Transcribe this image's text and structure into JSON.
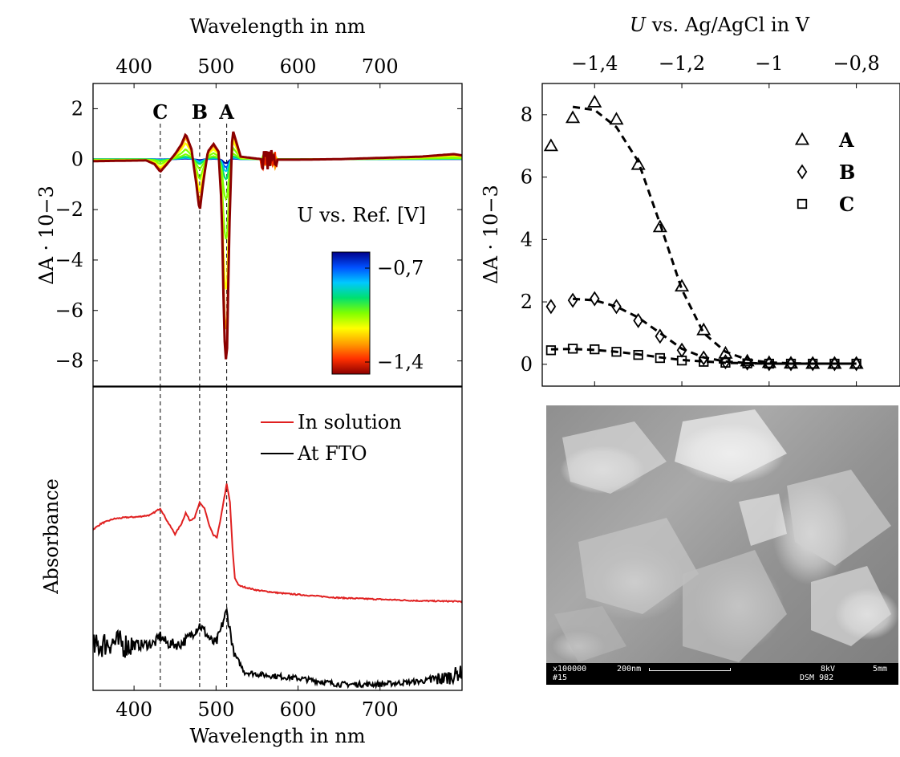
{
  "chart_data": [
    {
      "id": "difference-spectra",
      "type": "line",
      "top_axis_label": "Wavelength in nm",
      "x_ticks": [
        400,
        500,
        600,
        700
      ],
      "xlim": [
        350,
        800
      ],
      "ylabel": "ΔA · 10−3",
      "y_ticks": [
        2,
        0,
        -2,
        -4,
        -6,
        -8
      ],
      "y_tick_labels": [
        "2",
        "0",
        "−2",
        "−4",
        "−6",
        "−8"
      ],
      "ylim": [
        -9,
        3
      ],
      "peak_markers": [
        {
          "label": "C",
          "x": 432
        },
        {
          "label": "B",
          "x": 480
        },
        {
          "label": "A",
          "x": 513
        }
      ],
      "colorbar": {
        "title": "U vs. Ref. [V]",
        "max_label": "−0,7",
        "min_label": "−1,4",
        "colors": [
          "#00008a",
          "#0050ff",
          "#00c8ff",
          "#00e070",
          "#80ff00",
          "#ffff00",
          "#ffa000",
          "#ff3000",
          "#8b0000"
        ]
      },
      "series_shape": {
        "x": [
          350,
          390,
          415,
          425,
          432,
          440,
          450,
          458,
          463,
          470,
          476,
          480,
          484,
          490,
          497,
          503,
          507,
          510,
          513,
          516,
          520,
          530,
          560,
          600,
          650,
          700,
          750,
          790,
          800
        ],
        "y": [
          -0.08,
          -0.06,
          -0.05,
          -0.2,
          -0.5,
          -0.2,
          0.2,
          0.6,
          1.0,
          0.4,
          -1.0,
          -2.1,
          -1.0,
          0.3,
          0.6,
          0.3,
          -2.0,
          -7.0,
          -8.4,
          -3.0,
          1.2,
          0.1,
          -0.02,
          -0.02,
          0.0,
          0.05,
          0.1,
          0.2,
          0.15
        ],
        "potentials_V": [
          -0.7,
          -0.78,
          -0.86,
          -0.94,
          -1.02,
          -1.1,
          -1.18,
          -1.26,
          -1.34,
          -1.4
        ],
        "amplitudes": [
          0.02,
          0.04,
          0.06,
          0.1,
          0.2,
          0.4,
          0.65,
          0.85,
          0.97,
          1.0
        ]
      }
    },
    {
      "id": "absorbance-spectra",
      "type": "line",
      "xlabel": "Wavelength in nm",
      "ylabel": "Absorbance",
      "x_ticks": [
        400,
        500,
        600,
        700
      ],
      "xlim": [
        350,
        800
      ],
      "ylim": [
        0,
        1
      ],
      "legend_position": "top-right",
      "series": [
        {
          "name": "In solution",
          "color": "#e02020",
          "x": [
            350,
            360,
            375,
            390,
            405,
            420,
            432,
            440,
            450,
            458,
            463,
            468,
            474,
            480,
            486,
            492,
            497,
            501,
            505,
            509,
            513,
            517,
            520,
            523,
            528,
            535,
            550,
            580,
            650,
            700,
            750,
            800
          ],
          "y": [
            0.53,
            0.55,
            0.565,
            0.57,
            0.572,
            0.578,
            0.6,
            0.56,
            0.515,
            0.55,
            0.585,
            0.56,
            0.57,
            0.618,
            0.6,
            0.54,
            0.51,
            0.505,
            0.555,
            0.62,
            0.68,
            0.62,
            0.47,
            0.37,
            0.345,
            0.34,
            0.33,
            0.32,
            0.305,
            0.3,
            0.295,
            0.293
          ]
        },
        {
          "name": "At FTO",
          "color": "#000000",
          "x": [
            350,
            370,
            390,
            410,
            425,
            432,
            440,
            455,
            465,
            475,
            480,
            487,
            495,
            500,
            506,
            510,
            513,
            517,
            522,
            535,
            560,
            600,
            650,
            700,
            750,
            780,
            800
          ],
          "y": [
            0.14,
            0.16,
            0.15,
            0.15,
            0.155,
            0.18,
            0.155,
            0.15,
            0.17,
            0.2,
            0.215,
            0.19,
            0.16,
            0.155,
            0.2,
            0.24,
            0.26,
            0.2,
            0.12,
            0.06,
            0.05,
            0.04,
            0.02,
            0.02,
            0.03,
            0.04,
            0.06
          ]
        }
      ]
    },
    {
      "id": "potential-dependence",
      "type": "scatter",
      "top_axis_label": "U vs. Ag/AgCl in V",
      "x_ticks": [
        -1.4,
        -1.2,
        -1.0,
        -0.8
      ],
      "x_tick_labels": [
        "−1,4",
        "−1,2",
        "−1",
        "−0,8"
      ],
      "xlim": [
        -1.52,
        -0.7
      ],
      "ylabel": "ΔA · 10−3",
      "y_ticks": [
        0,
        2,
        4,
        6,
        8
      ],
      "ylim": [
        -0.7,
        9
      ],
      "legend_position": "top-right",
      "series": [
        {
          "name": "A",
          "marker": "triangle",
          "x": [
            -1.5,
            -1.45,
            -1.4,
            -1.35,
            -1.3,
            -1.25,
            -1.2,
            -1.15,
            -1.1,
            -1.05,
            -1.0,
            -0.95,
            -0.9,
            -0.85,
            -0.8
          ],
          "y": [
            7.0,
            7.9,
            8.4,
            7.85,
            6.4,
            4.4,
            2.5,
            1.1,
            0.35,
            0.1,
            0.05,
            0.03,
            0.02,
            0.02,
            0.02
          ],
          "fit_x": [
            -1.45,
            -1.4,
            -1.35,
            -1.3,
            -1.25,
            -1.2,
            -1.15,
            -1.1,
            -1.05,
            -1.0,
            -0.95,
            -0.9,
            -0.85,
            -0.8
          ],
          "fit_y": [
            8.25,
            8.15,
            7.6,
            6.5,
            4.5,
            2.4,
            1.0,
            0.4,
            0.15,
            0.06,
            0.03,
            0.02,
            0.02,
            0.02
          ]
        },
        {
          "name": "B",
          "marker": "diamond",
          "x": [
            -1.5,
            -1.45,
            -1.4,
            -1.35,
            -1.3,
            -1.25,
            -1.2,
            -1.15,
            -1.1,
            -1.05,
            -1.0,
            -0.95,
            -0.9,
            -0.85,
            -0.8
          ],
          "y": [
            1.85,
            2.05,
            2.1,
            1.85,
            1.4,
            0.9,
            0.45,
            0.2,
            0.08,
            0.04,
            0.02,
            0.02,
            0.02,
            0.02,
            0.02
          ],
          "fit_x": [
            -1.45,
            -1.4,
            -1.35,
            -1.3,
            -1.25,
            -1.2,
            -1.15,
            -1.1,
            -1.05,
            -1.0,
            -0.95,
            -0.9,
            -0.85,
            -0.8
          ],
          "fit_y": [
            2.1,
            2.05,
            1.85,
            1.5,
            1.0,
            0.5,
            0.22,
            0.09,
            0.04,
            0.02,
            0.02,
            0.02,
            0.02,
            0.02
          ]
        },
        {
          "name": "C",
          "marker": "square",
          "x": [
            -1.5,
            -1.45,
            -1.4,
            -1.35,
            -1.3,
            -1.25,
            -1.2,
            -1.15,
            -1.1,
            -1.05,
            -1.0,
            -0.95,
            -0.9,
            -0.85,
            -0.8
          ],
          "y": [
            0.45,
            0.5,
            0.48,
            0.4,
            0.3,
            0.2,
            0.12,
            0.08,
            0.05,
            0.03,
            0.02,
            0.02,
            0.02,
            0.02,
            0.02
          ],
          "fit_x": [
            -1.5,
            -1.45,
            -1.4,
            -1.35,
            -1.3,
            -1.25,
            -1.2,
            -1.15,
            -1.1,
            -1.05,
            -1.0,
            -0.95,
            -0.9,
            -0.85,
            -0.8
          ],
          "fit_y": [
            0.48,
            0.49,
            0.46,
            0.4,
            0.32,
            0.22,
            0.14,
            0.09,
            0.05,
            0.03,
            0.02,
            0.02,
            0.02,
            0.02,
            0.02
          ]
        }
      ]
    }
  ],
  "sem_image": {
    "magnification": "x100000",
    "scale_label": "200nm",
    "voltage": "8kV",
    "distance": "5mm",
    "image_number": "#15",
    "instrument": "DSM 982"
  }
}
